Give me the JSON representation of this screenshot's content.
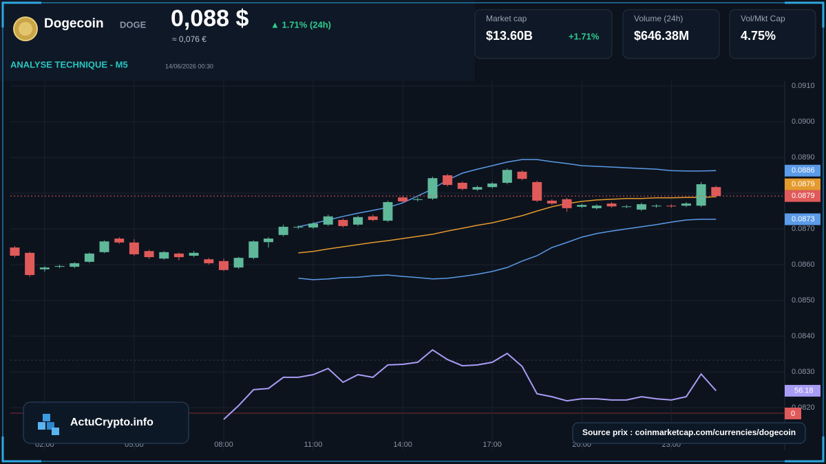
{
  "header": {
    "coin_name": "Dogecoin",
    "symbol": "DOGE",
    "price": "0,088 $",
    "price_eur": "≈ 0,076 €",
    "change": "▲ 1.71% (24h)",
    "section": "ANALYSE TECHNIQUE - M5",
    "timestamp": "14/06/2026 00:30"
  },
  "cards": [
    {
      "label": "Market cap",
      "value": "$13.60B",
      "change": "+1.71%"
    },
    {
      "label": "Volume (24h)",
      "value": "$646.38M"
    },
    {
      "label": "Vol/Mkt Cap",
      "value": "4.75%"
    }
  ],
  "footer": {
    "brand": "ActuCrypto.info",
    "source": "Source prix : coinmarketcap.com/currencies/dogecoin"
  },
  "indicator": {
    "label": "0"
  },
  "chart_data": {
    "type": "candlestick",
    "x": [
      1,
      1.5,
      2,
      2.5,
      3,
      3.5,
      4,
      4.5,
      5,
      5.5,
      6,
      6.5,
      7,
      7.5,
      8,
      8.5,
      9,
      9.5,
      10,
      10.5,
      11,
      11.5,
      12,
      12.5,
      13,
      13.5,
      14,
      14.5,
      15,
      15.5,
      16,
      16.5,
      17,
      17.5,
      18,
      18.5,
      19,
      19.5,
      20,
      20.5,
      21,
      21.5,
      22,
      22.5,
      23,
      23.5,
      24,
      24.5
    ],
    "open": [
      0.08648,
      0.08633,
      0.08587,
      0.08594,
      0.08594,
      0.08608,
      0.08635,
      0.08673,
      0.08662,
      0.08638,
      0.08617,
      0.08631,
      0.08625,
      0.08615,
      0.0861,
      0.08592,
      0.08619,
      0.08663,
      0.08683,
      0.08704,
      0.08704,
      0.08712,
      0.08725,
      0.08712,
      0.08735,
      0.08723,
      0.08788,
      0.08781,
      0.08785,
      0.0885,
      0.08829,
      0.0881,
      0.08817,
      0.08829,
      0.0886,
      0.08831,
      0.08779,
      0.08783,
      0.08762,
      0.08758,
      0.08771,
      0.08762,
      0.08754,
      0.08763,
      0.08765,
      0.08765,
      0.08765,
      0.08817
    ],
    "high": [
      0.08652,
      0.08636,
      0.08596,
      0.086,
      0.08607,
      0.08634,
      0.08668,
      0.08677,
      0.08671,
      0.08642,
      0.08638,
      0.08634,
      0.08638,
      0.08619,
      0.08617,
      0.08622,
      0.08668,
      0.08677,
      0.08712,
      0.0871,
      0.08719,
      0.0874,
      0.08729,
      0.08737,
      0.0874,
      0.08779,
      0.08792,
      0.08788,
      0.08846,
      0.08854,
      0.08833,
      0.08821,
      0.08831,
      0.08869,
      0.08864,
      0.08835,
      0.08783,
      0.08787,
      0.08771,
      0.08769,
      0.08775,
      0.08767,
      0.08773,
      0.08769,
      0.08769,
      0.08775,
      0.08831,
      0.08821
    ],
    "low": [
      0.0862,
      0.08566,
      0.0858,
      0.0859,
      0.0859,
      0.08605,
      0.08632,
      0.08658,
      0.08625,
      0.08616,
      0.08614,
      0.08612,
      0.08621,
      0.086,
      0.08582,
      0.08588,
      0.08615,
      0.08648,
      0.08679,
      0.087,
      0.087,
      0.08708,
      0.08704,
      0.08708,
      0.08721,
      0.08719,
      0.08773,
      0.08777,
      0.08781,
      0.08819,
      0.08808,
      0.08806,
      0.08813,
      0.08825,
      0.08836,
      0.08775,
      0.08767,
      0.08748,
      0.08758,
      0.08754,
      0.08759,
      0.08758,
      0.0875,
      0.08759,
      0.08759,
      0.08761,
      0.08761,
      0.08788
    ],
    "close": [
      0.08625,
      0.08571,
      0.08592,
      0.08596,
      0.08604,
      0.08631,
      0.08665,
      0.08662,
      0.08629,
      0.08621,
      0.08635,
      0.08621,
      0.08633,
      0.08604,
      0.08585,
      0.08619,
      0.08665,
      0.08673,
      0.08706,
      0.08706,
      0.08715,
      0.08735,
      0.08708,
      0.08733,
      0.08725,
      0.08775,
      0.08777,
      0.08783,
      0.08842,
      0.08823,
      0.08812,
      0.08817,
      0.08827,
      0.08865,
      0.0884,
      0.08779,
      0.08771,
      0.08758,
      0.08767,
      0.08765,
      0.08763,
      0.08763,
      0.08769,
      0.08765,
      0.08763,
      0.08771,
      0.08825,
      0.08792
    ],
    "close_label": "0.0879",
    "up_color": "#5fb89a",
    "down_color": "#e05a5a",
    "series": [
      {
        "color": "#5b9be8",
        "last_value_label": "0.0886",
        "values": [
          null,
          null,
          null,
          null,
          null,
          null,
          null,
          null,
          null,
          null,
          null,
          null,
          null,
          null,
          null,
          null,
          null,
          null,
          null,
          0.08706,
          0.08715,
          0.08725,
          0.08735,
          0.08744,
          0.08752,
          0.0876,
          0.08773,
          0.08792,
          0.08812,
          0.08837,
          0.08856,
          0.08867,
          0.08877,
          0.08887,
          0.08894,
          0.08894,
          0.08888,
          0.08883,
          0.08877,
          0.08875,
          0.08873,
          0.08871,
          0.08869,
          0.08867,
          0.08863,
          0.08862,
          0.08862,
          0.08863
        ]
      },
      {
        "color": "#e59a2e",
        "last_value_label": "0.0879",
        "values": [
          null,
          null,
          null,
          null,
          null,
          null,
          null,
          null,
          null,
          null,
          null,
          null,
          null,
          null,
          null,
          null,
          null,
          null,
          null,
          0.08633,
          0.08637,
          0.08644,
          0.0865,
          0.08656,
          0.08662,
          0.08667,
          0.08673,
          0.08679,
          0.08685,
          0.08694,
          0.08702,
          0.0871,
          0.08717,
          0.08727,
          0.08737,
          0.0875,
          0.08762,
          0.08771,
          0.08777,
          0.08781,
          0.08783,
          0.08785,
          0.08785,
          0.08787,
          0.08787,
          0.08788,
          0.08788,
          0.0879
        ]
      },
      {
        "color": "#5b9be8",
        "last_value_label": "0.0873",
        "values": [
          null,
          null,
          null,
          null,
          null,
          null,
          null,
          null,
          null,
          null,
          null,
          null,
          null,
          null,
          null,
          null,
          null,
          null,
          null,
          0.08562,
          0.08558,
          0.0856,
          0.08564,
          0.08565,
          0.08569,
          0.08571,
          0.08567,
          0.08564,
          0.0856,
          0.08562,
          0.08567,
          0.08573,
          0.08581,
          0.08592,
          0.0861,
          0.08625,
          0.08648,
          0.08662,
          0.08677,
          0.08687,
          0.08694,
          0.087,
          0.08706,
          0.08712,
          0.08719,
          0.08725,
          0.08727,
          0.08727
        ]
      },
      {
        "color": "#a99cf5",
        "axis": "y2",
        "values": [
          null,
          null,
          null,
          null,
          null,
          null,
          null,
          null,
          null,
          null,
          null,
          null,
          null,
          null,
          42.3,
          49,
          56.7,
          57.3,
          62.7,
          62.7,
          64,
          67,
          60.3,
          64,
          62.7,
          68.7,
          69,
          70,
          76,
          71.3,
          68.3,
          68.7,
          70,
          74.3,
          68,
          54.7,
          53.3,
          51.3,
          52.3,
          52.3,
          51.7,
          51.7,
          53.3,
          52.3,
          51.7,
          53.3,
          64.3,
          56.18
        ]
      }
    ],
    "xlim": [
      0.85,
      26.8
    ],
    "xticks": [
      {
        "value": 2,
        "label": "02:00"
      },
      {
        "value": 5,
        "label": "05:00"
      },
      {
        "value": 8,
        "label": "08:00"
      },
      {
        "value": 11,
        "label": "11:00"
      },
      {
        "value": 14,
        "label": "14:00"
      },
      {
        "value": 17,
        "label": "17:00"
      },
      {
        "value": 20,
        "label": "20:00"
      },
      {
        "value": 23,
        "label": "23:00"
      }
    ],
    "ylim": [
      0.0815,
      0.0915
    ],
    "yticks": [
      {
        "value": 0.082,
        "label": "0.0820"
      },
      {
        "value": 0.083,
        "label": "0.0830"
      },
      {
        "value": 0.084,
        "label": "0.0840"
      },
      {
        "value": 0.085,
        "label": "0.0850"
      },
      {
        "value": 0.086,
        "label": "0.0860"
      },
      {
        "value": 0.087,
        "label": "0.0870"
      },
      {
        "value": 0.088,
        "label": "0.0880"
      },
      {
        "value": 0.089,
        "label": "0.0890"
      },
      {
        "value": 0.09,
        "label": "0.0900"
      },
      {
        "value": 0.091,
        "label": "0.0910"
      }
    ],
    "y2lim": [
      40,
      75
    ],
    "grid": true
  }
}
